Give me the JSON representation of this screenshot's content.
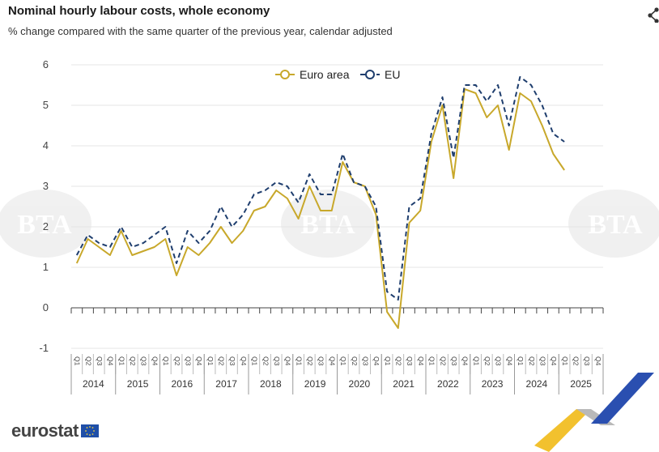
{
  "header": {
    "title": "Nominal hourly labour costs, whole economy",
    "subtitle": "% change compared with the same quarter of the previous year, calendar adjusted"
  },
  "icons": {
    "share": "share-icon",
    "eu_flag": "eu-flag-icon"
  },
  "watermark": "BTA",
  "logo": {
    "text": "eurostat"
  },
  "colors": {
    "euro_area": "#c8a82b",
    "eu": "#1f3e6e",
    "grid": "#e4e4e4",
    "axis": "#444444"
  },
  "chart_data": {
    "type": "line",
    "title": "Nominal hourly labour costs, whole economy",
    "subtitle": "% change compared with the same quarter of the previous year, calendar adjusted",
    "years": [
      "2014",
      "2015",
      "2016",
      "2017",
      "2018",
      "2019",
      "2020",
      "2021",
      "2022",
      "2023",
      "2024",
      "2025"
    ],
    "quarters": [
      "Q1",
      "Q2",
      "Q3",
      "Q4"
    ],
    "ylim": [
      -1,
      6
    ],
    "yticks": [
      "-1",
      "0",
      "1",
      "2",
      "3",
      "4",
      "5",
      "6"
    ],
    "grid": true,
    "legend_position": "top",
    "series": [
      {
        "name": "Euro area",
        "style": "solid",
        "values": [
          1.1,
          1.7,
          1.5,
          1.3,
          1.9,
          1.3,
          1.4,
          1.5,
          1.7,
          0.8,
          1.5,
          1.3,
          1.6,
          2.0,
          1.6,
          1.9,
          2.4,
          2.5,
          2.9,
          2.7,
          2.2,
          3.0,
          2.4,
          2.4,
          3.6,
          3.1,
          3.0,
          2.3,
          -0.1,
          -0.5,
          2.1,
          2.4,
          4.1,
          5.0,
          3.2,
          5.4,
          5.3,
          4.7,
          5.0,
          3.9,
          5.3,
          5.1,
          4.5,
          3.8,
          3.4
        ]
      },
      {
        "name": "EU",
        "style": "dashed",
        "values": [
          1.3,
          1.8,
          1.6,
          1.5,
          2.0,
          1.5,
          1.6,
          1.8,
          2.0,
          1.1,
          1.9,
          1.6,
          1.9,
          2.5,
          2.0,
          2.3,
          2.8,
          2.9,
          3.1,
          3.0,
          2.6,
          3.3,
          2.8,
          2.8,
          3.8,
          3.1,
          3.0,
          2.5,
          0.4,
          0.2,
          2.5,
          2.7,
          4.3,
          5.2,
          3.7,
          5.5,
          5.5,
          5.1,
          5.5,
          4.5,
          5.7,
          5.5,
          5.0,
          4.3,
          4.1
        ]
      }
    ]
  }
}
